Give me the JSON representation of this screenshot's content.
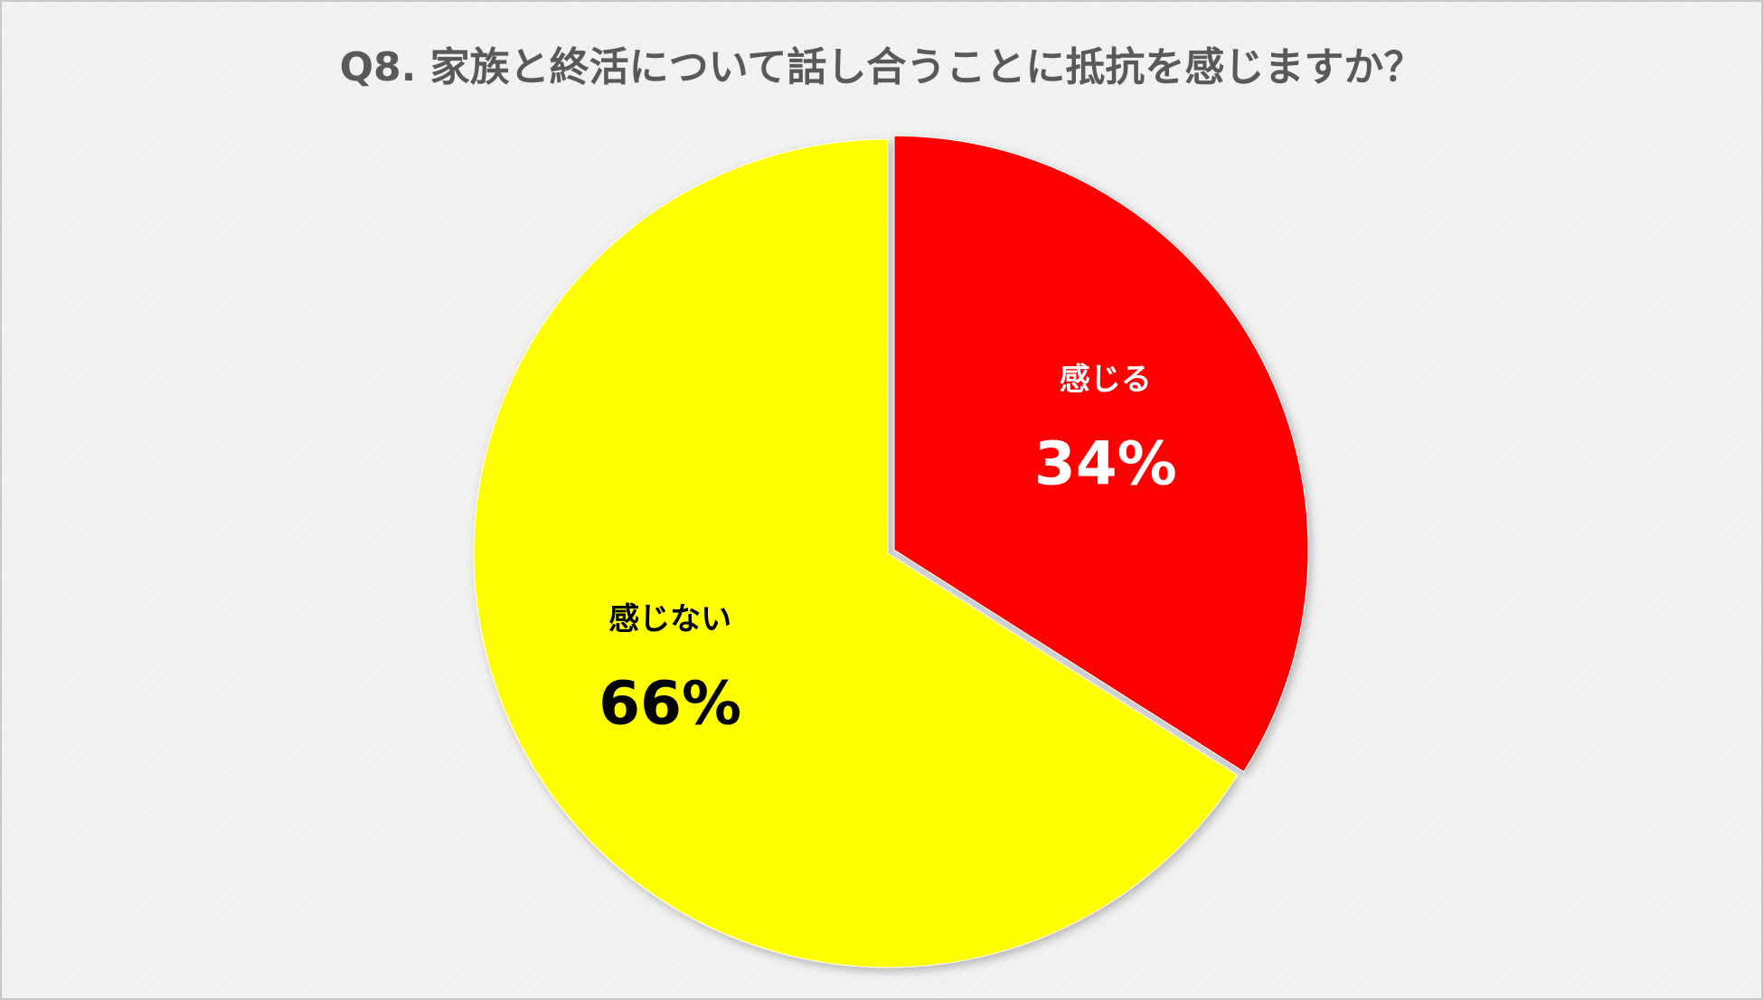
{
  "chart_data": {
    "type": "pie",
    "title": "Q8. 家族と終活について話し合うことに抵抗を感じますか？",
    "categories": [
      "感じる",
      "感じない"
    ],
    "values": [
      34,
      66
    ],
    "value_labels": [
      "34%",
      "66%"
    ],
    "colors": [
      "#ff0000",
      "#ffff00"
    ],
    "label_colors": [
      "#ffffff",
      "#000000"
    ]
  }
}
